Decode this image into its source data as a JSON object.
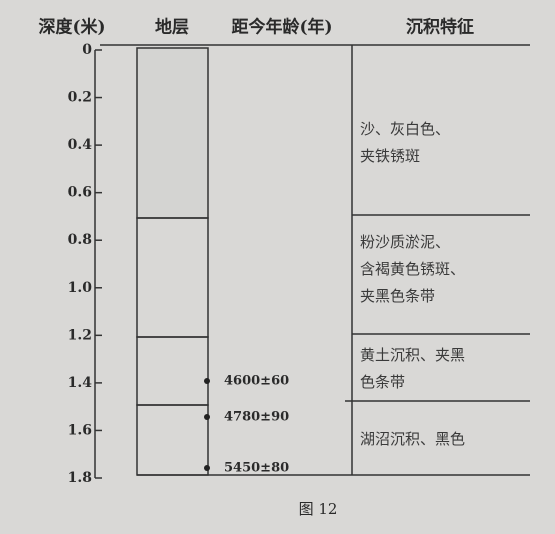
{
  "headers": [
    "深度(米)",
    "地层",
    "距今年龄(年)",
    "沉积特征"
  ],
  "depth_ticks": [
    "0",
    "0.2",
    "0.4",
    "0.6",
    "0.8",
    "1.0",
    "1.2",
    "1.4",
    "1.6",
    "1.8"
  ],
  "descriptions": [
    [
      "沙、灰白色、",
      "夹铁锈斑"
    ],
    [
      "粉沙质淤泥、",
      "含褐黄色锈斑、",
      "夹黑色条带"
    ],
    [
      "黄土沉积、夹黑",
      "色条带"
    ],
    [
      "湖沼沉积、黑色"
    ]
  ],
  "dates": [
    "4600±60",
    "4780±90",
    "5450±80"
  ],
  "caption": "图 12"
}
